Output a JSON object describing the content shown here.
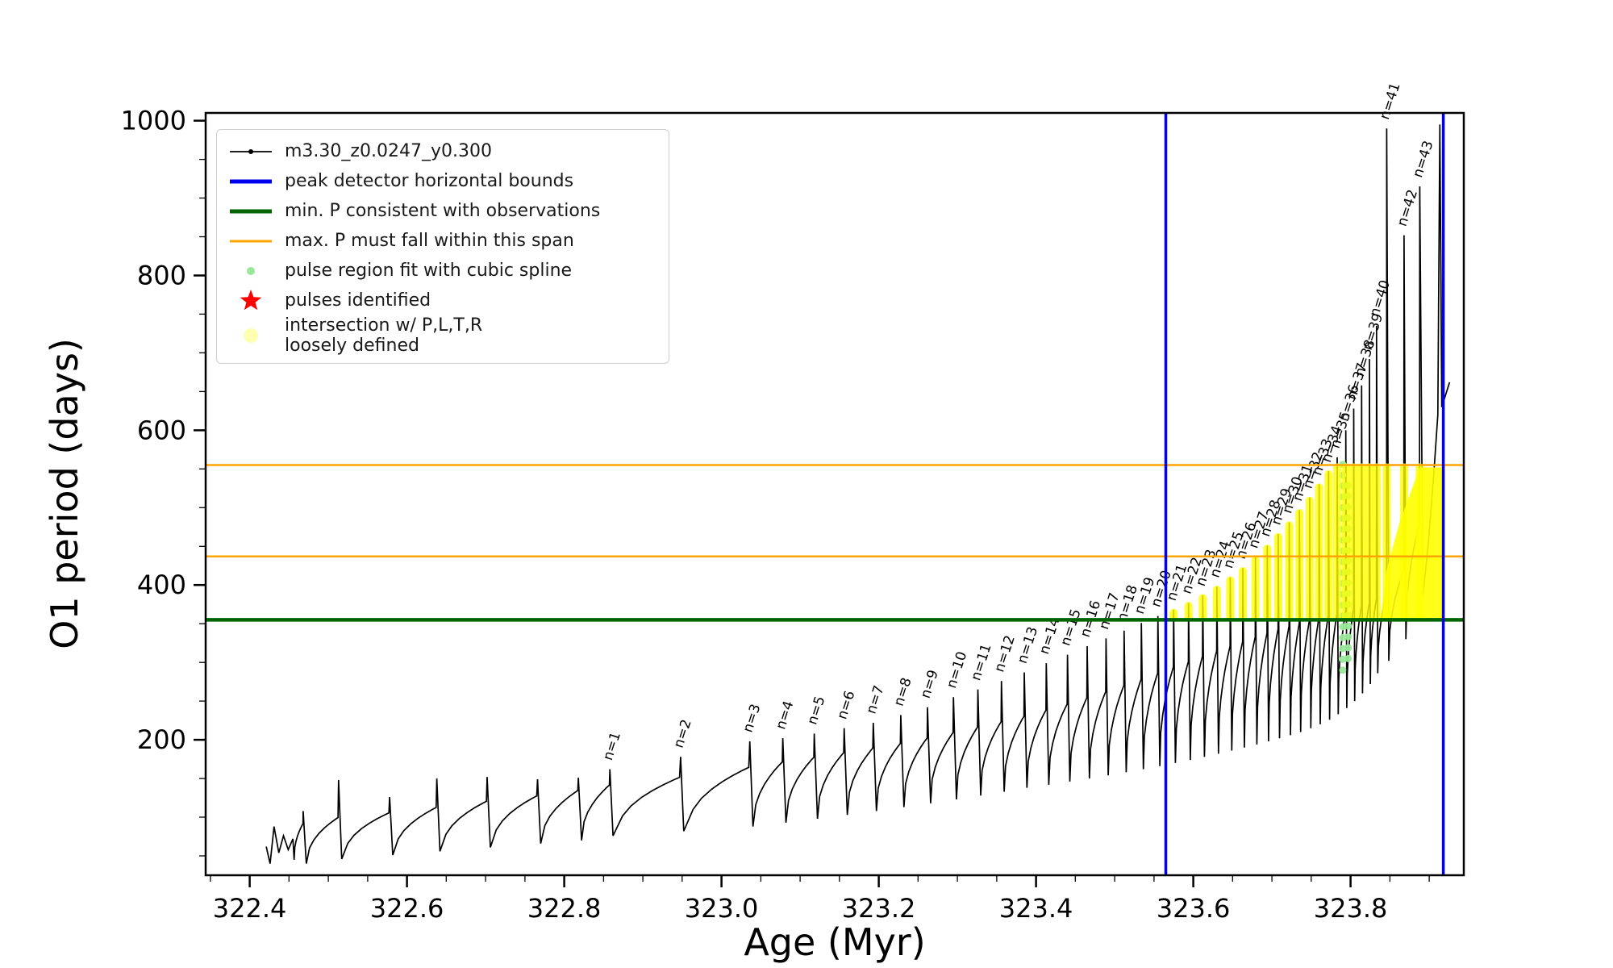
{
  "chart_data": {
    "type": "line",
    "title": "",
    "xlabel": "Age (Myr)",
    "ylabel": "O1 period (days)",
    "xlim": [
      322.344,
      323.944
    ],
    "ylim": [
      25,
      1010
    ],
    "x_ticks": [
      322.4,
      322.6,
      322.8,
      323.0,
      323.2,
      323.4,
      323.6,
      323.8
    ],
    "y_ticks": [
      200,
      400,
      600,
      800,
      1000
    ],
    "x_minor_step": 0.05,
    "y_minor_step": 50,
    "grid": false,
    "legend_position": "upper left",
    "colors": {
      "series": "#000000",
      "bounds": "#0000ee",
      "min_p": "#006400",
      "max_p_span": "#ffa500",
      "spline": "#98e898",
      "pulse_star": "#ff0000",
      "intersection": "#ffff00"
    },
    "legend": [
      {
        "label": "m3.30_z0.0247_y0.300",
        "type": "line-marker",
        "color": "#000000"
      },
      {
        "label": "peak detector horizontal bounds",
        "type": "line",
        "color": "#0000ee"
      },
      {
        "label": "min. P consistent with observations",
        "type": "line",
        "color": "#006400"
      },
      {
        "label": "max. P must fall within this span",
        "type": "line",
        "color": "#ffa500"
      },
      {
        "label": "pulse region fit with cubic spline",
        "type": "dot",
        "color": "#98e898"
      },
      {
        "label": "pulses identified",
        "type": "star",
        "color": "#ff0000"
      },
      {
        "label": "intersection w/ P,L,T,R\nloosely defined",
        "type": "dot-large",
        "color": "#ffffb0"
      }
    ],
    "hlines": [
      {
        "name": "min-P-consistent",
        "y": 355,
        "color": "#006400",
        "width": 4.5
      },
      {
        "name": "max-P-span-lower",
        "y": 437,
        "color": "#ffa500",
        "width": 2.5
      },
      {
        "name": "max-P-span-upper",
        "y": 555,
        "color": "#ffa500",
        "width": 2.5
      }
    ],
    "vlines": [
      {
        "name": "peak-detector-left-bound",
        "x": 323.565,
        "color": "#0000ee",
        "width": 3.5
      },
      {
        "name": "peak-detector-right-bound",
        "x": 323.918,
        "color": "#0000ee",
        "width": 3.5
      }
    ],
    "series": {
      "name": "m3.30_z0.0247_y0.300",
      "start_points": [
        [
          322.421,
          62
        ],
        [
          322.426,
          40
        ],
        [
          322.431,
          88
        ],
        [
          322.437,
          54
        ],
        [
          322.443,
          76
        ],
        [
          322.449,
          58
        ],
        [
          322.455,
          72
        ]
      ],
      "pulses": [
        {
          "t": 322.468,
          "dip": 45,
          "shoulder": 92,
          "peak": 108
        },
        {
          "t": 322.513,
          "dip": 40,
          "shoulder": 100,
          "peak": 148
        },
        {
          "t": 322.578,
          "dip": 46,
          "shoulder": 106,
          "peak": 126
        },
        {
          "t": 322.638,
          "dip": 51,
          "shoulder": 113,
          "peak": 150
        },
        {
          "t": 322.702,
          "dip": 56,
          "shoulder": 121,
          "peak": 152
        },
        {
          "t": 322.766,
          "dip": 61,
          "shoulder": 128,
          "peak": 149
        },
        {
          "t": 322.818,
          "dip": 66,
          "shoulder": 135,
          "peak": 151
        },
        {
          "t": 322.858,
          "dip": 70,
          "shoulder": 142,
          "peak": 162,
          "label": "n=1"
        },
        {
          "t": 322.948,
          "dip": 76,
          "shoulder": 152,
          "peak": 178,
          "label": "n=2"
        },
        {
          "t": 323.036,
          "dip": 82,
          "shoulder": 165,
          "peak": 198,
          "label": "n=3"
        },
        {
          "t": 323.078,
          "dip": 88,
          "shoulder": 172,
          "peak": 202,
          "label": "n=4"
        },
        {
          "t": 323.118,
          "dip": 93,
          "shoulder": 178,
          "peak": 208,
          "label": "n=5"
        },
        {
          "t": 323.156,
          "dip": 98,
          "shoulder": 184,
          "peak": 215,
          "label": "n=6"
        },
        {
          "t": 323.193,
          "dip": 103,
          "shoulder": 190,
          "peak": 222,
          "label": "n=7"
        },
        {
          "t": 323.228,
          "dip": 108,
          "shoulder": 196,
          "peak": 232,
          "label": "n=8"
        },
        {
          "t": 323.262,
          "dip": 113,
          "shoulder": 203,
          "peak": 242,
          "label": "n=9"
        },
        {
          "t": 323.295,
          "dip": 118,
          "shoulder": 210,
          "peak": 255,
          "label": "n=10"
        },
        {
          "t": 323.326,
          "dip": 123,
          "shoulder": 217,
          "peak": 265,
          "label": "n=11"
        },
        {
          "t": 323.356,
          "dip": 128,
          "shoulder": 224,
          "peak": 276,
          "label": "n=12"
        },
        {
          "t": 323.385,
          "dip": 133,
          "shoulder": 231,
          "peak": 287,
          "label": "n=13"
        },
        {
          "t": 323.413,
          "dip": 138,
          "shoulder": 239,
          "peak": 299,
          "label": "n=14"
        },
        {
          "t": 323.44,
          "dip": 142,
          "shoulder": 247,
          "peak": 310,
          "label": "n=15"
        },
        {
          "t": 323.465,
          "dip": 146,
          "shoulder": 255,
          "peak": 321,
          "label": "n=16"
        },
        {
          "t": 323.489,
          "dip": 150,
          "shoulder": 263,
          "peak": 331,
          "label": "n=17"
        },
        {
          "t": 323.512,
          "dip": 154,
          "shoulder": 271,
          "peak": 341,
          "label": "n=18"
        },
        {
          "t": 323.534,
          "dip": 158,
          "shoulder": 279,
          "peak": 351,
          "label": "n=19"
        },
        {
          "t": 323.555,
          "dip": 162,
          "shoulder": 287,
          "peak": 360,
          "label": "n=20"
        },
        {
          "t": 323.575,
          "dip": 166,
          "shoulder": 295,
          "peak": 368,
          "label": "n=21"
        },
        {
          "t": 323.594,
          "dip": 170,
          "shoulder": 302,
          "peak": 377,
          "label": "n=22"
        },
        {
          "t": 323.612,
          "dip": 174,
          "shoulder": 309,
          "peak": 387,
          "label": "n=23"
        },
        {
          "t": 323.63,
          "dip": 178,
          "shoulder": 316,
          "peak": 398,
          "label": "n=24"
        },
        {
          "t": 323.647,
          "dip": 182,
          "shoulder": 322,
          "peak": 410,
          "label": "n=25"
        },
        {
          "t": 323.663,
          "dip": 186,
          "shoulder": 328,
          "peak": 422,
          "label": "n=26"
        },
        {
          "t": 323.679,
          "dip": 190,
          "shoulder": 334,
          "peak": 436,
          "label": "n=27"
        },
        {
          "t": 323.694,
          "dip": 194,
          "shoulder": 339,
          "peak": 451,
          "label": "n=28"
        },
        {
          "t": 323.708,
          "dip": 198,
          "shoulder": 344,
          "peak": 466,
          "label": "n=29"
        },
        {
          "t": 323.722,
          "dip": 202,
          "shoulder": 348,
          "peak": 481,
          "label": "n=30"
        },
        {
          "t": 323.735,
          "dip": 206,
          "shoulder": 352,
          "peak": 497,
          "label": "n=31"
        },
        {
          "t": 323.748,
          "dip": 210,
          "shoulder": 356,
          "peak": 513,
          "label": "n=32"
        },
        {
          "t": 323.76,
          "dip": 215,
          "shoulder": 359,
          "peak": 530,
          "label": "n=33"
        },
        {
          "t": 323.772,
          "dip": 220,
          "shoulder": 362,
          "peak": 547,
          "label": "n=34"
        },
        {
          "t": 323.783,
          "dip": 226,
          "shoulder": 365,
          "peak": 565,
          "label": "n=35"
        },
        {
          "t": 323.794,
          "dip": 233,
          "shoulder": 368,
          "peak": 600,
          "label": "n=36"
        },
        {
          "t": 323.804,
          "dip": 241,
          "shoulder": 371,
          "peak": 628,
          "label": "n=37"
        },
        {
          "t": 323.814,
          "dip": 250,
          "shoulder": 374,
          "peak": 658,
          "label": "n=38"
        },
        {
          "t": 323.824,
          "dip": 260,
          "shoulder": 378,
          "peak": 692,
          "label": "n=39"
        },
        {
          "t": 323.833,
          "dip": 272,
          "shoulder": 383,
          "peak": 735,
          "label": "n=40"
        },
        {
          "t": 323.846,
          "dip": 286,
          "shoulder": 390,
          "peak": 990,
          "label": "n=41"
        },
        {
          "t": 323.868,
          "dip": 302,
          "shoulder": 420,
          "peak": 852,
          "label": "n=42"
        },
        {
          "t": 323.888,
          "dip": 330,
          "shoulder": 480,
          "peak": 915,
          "label": "n=43"
        }
      ],
      "tail_points": [
        [
          323.892,
          385
        ],
        [
          323.899,
          455
        ],
        [
          323.906,
          545
        ],
        [
          323.911,
          620
        ],
        [
          323.9135,
          995
        ],
        [
          323.916,
          630
        ],
        [
          323.926,
          662
        ]
      ]
    },
    "spline_columns": [
      {
        "x": 323.79,
        "y0": 290,
        "y1": 556
      },
      {
        "x": 323.797,
        "y0": 305,
        "y1": 540
      }
    ],
    "intersection": {
      "x_min": 323.56,
      "x_max": 323.918,
      "y_base": 358,
      "y_cap": 552,
      "wedge": [
        [
          323.838,
          357
        ],
        [
          323.918,
          357
        ],
        [
          323.918,
          552
        ],
        [
          323.888,
          552
        ],
        [
          323.862,
          480
        ],
        [
          323.846,
          420
        ]
      ]
    }
  }
}
